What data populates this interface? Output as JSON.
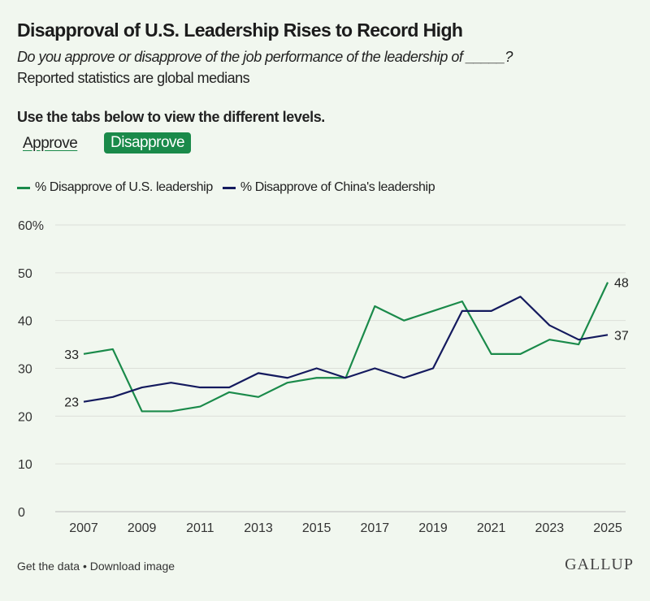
{
  "header": {
    "title": "Disapproval of U.S. Leadership Rises to Record High",
    "subtitle": "Do you approve or disapprove of the job performance of the leadership of _____?",
    "note": "Reported statistics are global medians",
    "instruction": "Use the tabs below to view the different levels."
  },
  "tabs": [
    {
      "label": "Approve",
      "active": false
    },
    {
      "label": "Disapprove",
      "active": true
    }
  ],
  "footer": {
    "get_data": "Get the data",
    "separator": " • ",
    "download": "Download image",
    "logo": "GALLUP"
  },
  "chart_data": {
    "type": "line",
    "x": [
      2007,
      2008,
      2009,
      2010,
      2011,
      2012,
      2013,
      2014,
      2015,
      2016,
      2017,
      2018,
      2019,
      2020,
      2021,
      2022,
      2023,
      2024,
      2025
    ],
    "series": [
      {
        "name": "% Disapprove of U.S. leadership",
        "color": "#1a8a4a",
        "values": [
          33,
          34,
          21,
          21,
          22,
          25,
          24,
          27,
          28,
          28,
          43,
          40,
          42,
          44,
          33,
          33,
          36,
          35,
          48
        ]
      },
      {
        "name": "% Disapprove of China's leadership",
        "color": "#141a5e",
        "values": [
          23,
          24,
          26,
          27,
          26,
          26,
          29,
          28,
          30,
          28,
          30,
          28,
          30,
          42,
          42,
          45,
          39,
          36,
          37
        ]
      }
    ],
    "ylim": [
      0,
      60
    ],
    "yticks": [
      0,
      10,
      20,
      30,
      40,
      50,
      60
    ],
    "ytick_labels": [
      "0",
      "10",
      "20",
      "30",
      "40",
      "50",
      "60%"
    ],
    "xticks": [
      2007,
      2009,
      2011,
      2013,
      2015,
      2017,
      2019,
      2021,
      2023,
      2025
    ],
    "grid": true,
    "legend": "top-left",
    "data_labels": {
      "first": true,
      "last": true
    }
  }
}
